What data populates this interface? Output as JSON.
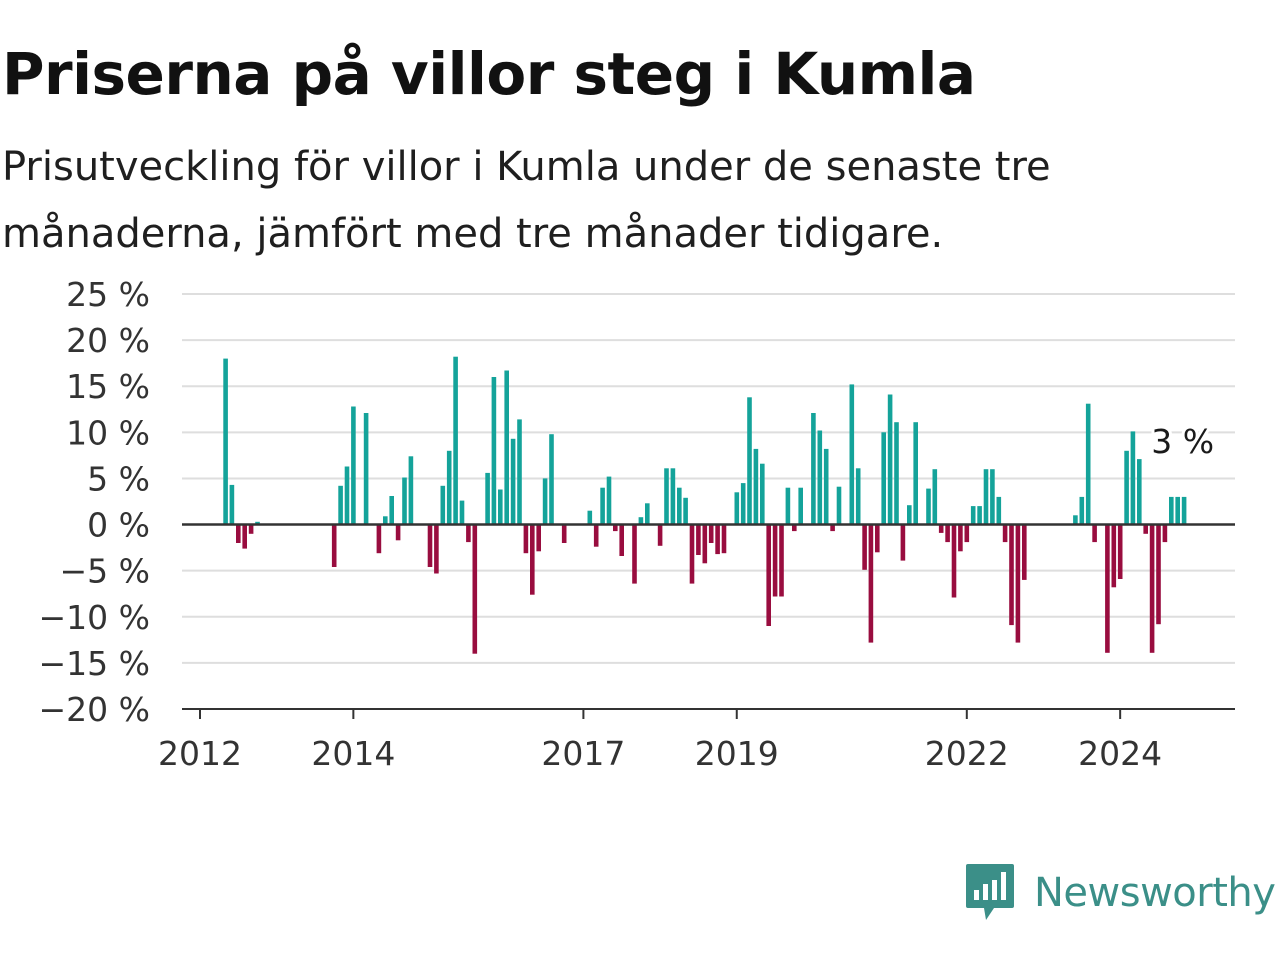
{
  "title": "Priserna på villor steg i Kumla",
  "subtitle": "Prisutveckling för villor i Kumla under de senaste tre månaderna, jämfört med tre månader tidigare.",
  "brand": {
    "name": "Newsworthy",
    "icon": "newsworthy-logo-icon"
  },
  "colors": {
    "positive": "#14a39a",
    "negative": "#990d3f",
    "grid": "#dedede",
    "zero_line": "#333333",
    "brand": "#3b8f88"
  },
  "chart_data": {
    "type": "bar",
    "y_tick_labels": [
      "25 %",
      "20 %",
      "15 %",
      "10 %",
      "5 %",
      "0 %",
      "−5 %",
      "−10 %",
      "−15 %",
      "−20 %"
    ],
    "y_ticks": [
      25,
      20,
      15,
      10,
      5,
      0,
      -5,
      -10,
      -15,
      -20
    ],
    "ylim": [
      -20,
      25
    ],
    "x_tick_labels": [
      "2012",
      "2014",
      "2017",
      "2019",
      "2022",
      "2024"
    ],
    "x_ticks": [
      "2012-01",
      "2014-01",
      "2017-01",
      "2019-01",
      "2022-01",
      "2024-01"
    ],
    "grid": true,
    "last_value_label": "3 %",
    "series": [
      {
        "x": [
          "2012-05",
          "2012-06",
          "2012-07",
          "2012-08",
          "2012-09",
          "2012-10",
          "2013-10",
          "2013-11",
          "2013-12",
          "2014-01",
          "2014-03",
          "2014-05",
          "2014-06",
          "2014-07",
          "2014-08",
          "2014-09",
          "2014-10",
          "2015-01",
          "2015-02",
          "2015-03",
          "2015-04",
          "2015-05",
          "2015-06",
          "2015-07",
          "2015-08",
          "2015-10",
          "2015-11",
          "2015-12",
          "2016-01",
          "2016-02",
          "2016-03",
          "2016-04",
          "2016-05",
          "2016-06",
          "2016-07",
          "2016-08",
          "2016-10",
          "2017-02",
          "2017-03",
          "2017-04",
          "2017-05",
          "2017-06",
          "2017-07",
          "2017-09",
          "2017-10",
          "2017-11",
          "2018-01",
          "2018-02",
          "2018-03",
          "2018-04",
          "2018-05",
          "2018-06",
          "2018-07",
          "2018-08",
          "2018-09",
          "2018-10",
          "2018-11",
          "2019-01",
          "2019-02",
          "2019-03",
          "2019-04",
          "2019-05",
          "2019-06",
          "2019-07",
          "2019-08",
          "2019-09",
          "2019-10",
          "2019-11",
          "2020-01",
          "2020-02",
          "2020-03",
          "2020-04",
          "2020-05",
          "2020-07",
          "2020-08",
          "2020-09",
          "2020-10",
          "2020-11",
          "2020-12",
          "2021-01",
          "2021-02",
          "2021-03",
          "2021-04",
          "2021-05",
          "2021-07",
          "2021-08",
          "2021-09",
          "2021-10",
          "2021-11",
          "2021-12",
          "2022-01",
          "2022-02",
          "2022-03",
          "2022-04",
          "2022-05",
          "2022-06",
          "2022-07",
          "2022-08",
          "2022-09",
          "2022-10",
          "2023-06",
          "2023-07",
          "2023-08",
          "2023-09",
          "2023-11",
          "2023-12",
          "2024-01",
          "2024-02",
          "2024-03",
          "2024-04",
          "2024-05",
          "2024-06",
          "2024-07",
          "2024-08",
          "2024-09",
          "2024-10",
          "2024-11"
        ],
        "values": [
          18,
          4.3,
          -2,
          -2.6,
          -1,
          0.3,
          -4.6,
          4.2,
          6.3,
          12.8,
          12.1,
          -3.1,
          0.9,
          3.1,
          -1.7,
          5.1,
          7.4,
          -4.6,
          -5.3,
          4.2,
          8,
          18.2,
          2.6,
          -1.9,
          -14,
          5.6,
          16,
          3.8,
          16.7,
          9.3,
          11.4,
          -3.1,
          -7.6,
          -2.9,
          5,
          9.8,
          -2,
          1.5,
          -2.4,
          4,
          5.2,
          -0.7,
          -3.4,
          -6.4,
          0.8,
          2.3,
          -2.3,
          6.1,
          6.1,
          4,
          2.9,
          -6.4,
          -3.3,
          -4.2,
          -2,
          -3.2,
          -3.1,
          3.5,
          4.5,
          13.8,
          8.2,
          6.6,
          -11,
          -7.8,
          -7.8,
          4,
          -0.7,
          4,
          12.1,
          10.2,
          8.2,
          -0.7,
          4.1,
          15.2,
          6.1,
          -4.9,
          -12.8,
          -3,
          10,
          14.1,
          11.1,
          -3.9,
          2.1,
          11.1,
          3.9,
          6,
          -0.9,
          -1.9,
          -7.9,
          -2.9,
          -1.9,
          2,
          2,
          6,
          6,
          3,
          -1.9,
          -10.9,
          -12.8,
          -6,
          1,
          3,
          13.1,
          -1.9,
          -13.9,
          -6.8,
          -5.9,
          8,
          10.1,
          7.1,
          -1,
          -13.9,
          -10.8,
          -1.9,
          3,
          3,
          3
        ]
      }
    ]
  }
}
